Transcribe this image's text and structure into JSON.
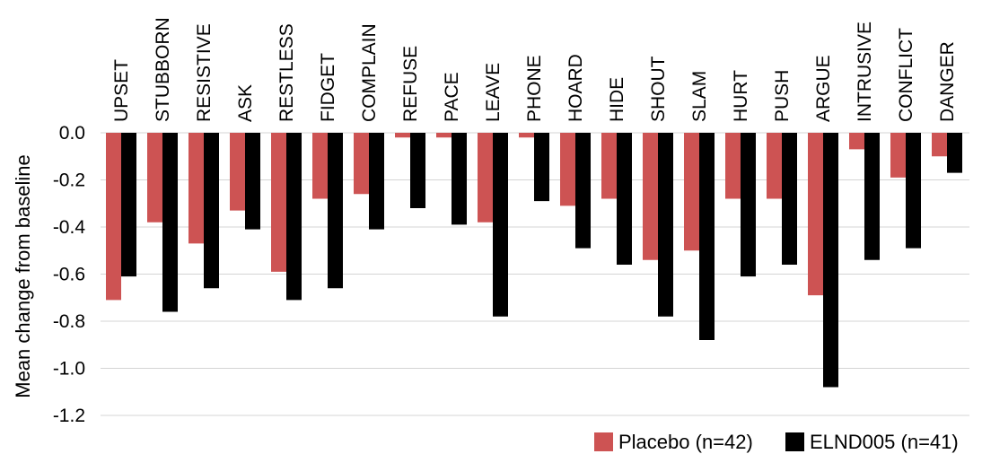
{
  "chart_data": {
    "type": "bar",
    "ylabel": "Mean change from baseline",
    "ylim": [
      -1.2,
      0.0
    ],
    "yticks": [
      "0.0",
      "-0.2",
      "-0.4",
      "-0.6",
      "-0.8",
      "-1.0",
      "-1.2"
    ],
    "ytick_values": [
      0.0,
      -0.2,
      -0.4,
      -0.6,
      -0.8,
      -1.0,
      -1.2
    ],
    "grid": true,
    "legend_position": "bottom-right",
    "categories": [
      "UPSET",
      "STUBBORN",
      "RESISTIVE",
      "ASK",
      "RESTLESS",
      "FIDGET",
      "COMPLAIN",
      "REFUSE",
      "PACE",
      "LEAVE",
      "PHONE",
      "HOARD",
      "HIDE",
      "SHOUT",
      "SLAM",
      "HURT",
      "PUSH",
      "ARGUE",
      "INTRUSIVE",
      "CONFLICT",
      "DANGER"
    ],
    "series": [
      {
        "name": "Placebo (n=42)",
        "color": "#cd5353",
        "values": [
          -0.71,
          -0.38,
          -0.47,
          -0.33,
          -0.59,
          -0.28,
          -0.26,
          -0.02,
          -0.02,
          -0.38,
          -0.02,
          -0.31,
          -0.28,
          -0.54,
          -0.5,
          -0.28,
          -0.28,
          -0.69,
          -0.07,
          -0.19,
          -0.1
        ]
      },
      {
        "name": "ELND005 (n=41)",
        "color": "#000000",
        "values": [
          -0.61,
          -0.76,
          -0.66,
          -0.41,
          -0.71,
          -0.66,
          -0.41,
          -0.32,
          -0.39,
          -0.78,
          -0.29,
          -0.49,
          -0.56,
          -0.78,
          -0.88,
          -0.61,
          -0.56,
          -1.08,
          -0.54,
          -0.49,
          -0.17
        ]
      }
    ]
  }
}
